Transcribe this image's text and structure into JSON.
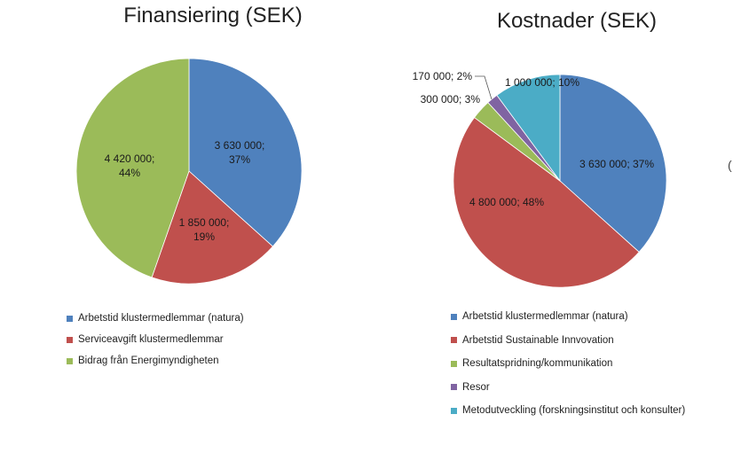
{
  "chart_data": [
    {
      "type": "pie",
      "title": "Finansiering (SEK)",
      "slices": [
        {
          "name": "Arbetstid klustermedlemmar (natura)",
          "value": 3630000,
          "label": "3 630 000;\n37%",
          "color": "#4f81bd"
        },
        {
          "name": "Serviceavgift klustermedlemmar",
          "value": 1850000,
          "label": "1 850 000;\n19%",
          "color": "#c0504d"
        },
        {
          "name": "Bidrag från Energimyndigheten",
          "value": 4420000,
          "label": "4 420 000;\n44%",
          "color": "#9bbb59"
        }
      ],
      "legend_position": "bottom"
    },
    {
      "type": "pie",
      "title": "Kostnader (SEK)",
      "slices": [
        {
          "name": "Arbetstid klustermedlemmar (natura)",
          "value": 3630000,
          "label": "3 630 000; 37%",
          "color": "#4f81bd"
        },
        {
          "name": "Arbetstid Sustainable Innvovation",
          "value": 4800000,
          "label": "4 800 000; 48%",
          "color": "#c0504d"
        },
        {
          "name": "Resultatspridning/kommunikation",
          "value": 300000,
          "label": "300 000; 3%",
          "color": "#9bbb59"
        },
        {
          "name": "Resor",
          "value": 170000,
          "label": "170 000; 2%",
          "color": "#8064a2"
        },
        {
          "name": "Metodutveckling (forskningsinstitut och konsulter)",
          "value": 1000000,
          "label": "1 000 000; 10%",
          "color": "#4bacc6"
        }
      ],
      "legend_position": "bottom"
    }
  ]
}
